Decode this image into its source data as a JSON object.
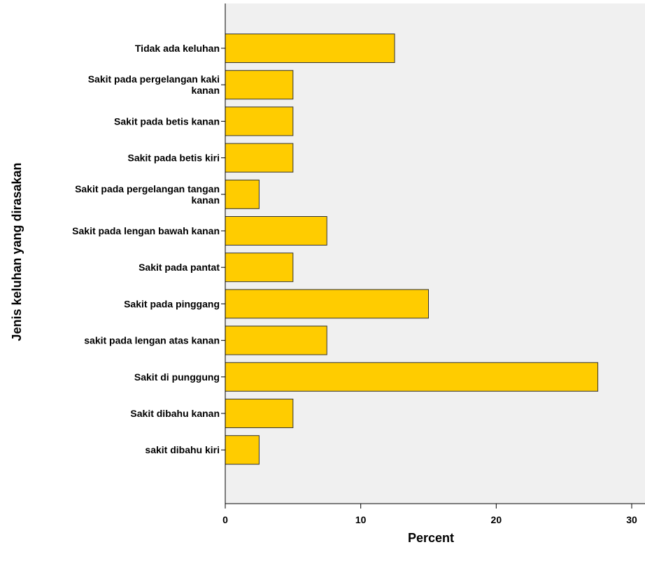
{
  "chart_data": {
    "type": "bar",
    "orientation": "horizontal",
    "categories": [
      [
        "Tidak ada keluhan"
      ],
      [
        "Sakit pada pergelangan kaki",
        "kanan"
      ],
      [
        "Sakit pada betis kanan"
      ],
      [
        "Sakit pada betis kiri"
      ],
      [
        "Sakit pada pergelangan tangan",
        "kanan"
      ],
      [
        "Sakit pada lengan bawah kanan"
      ],
      [
        "Sakit pada pantat"
      ],
      [
        "Sakit pada pinggang"
      ],
      [
        "sakit pada lengan atas kanan"
      ],
      [
        "Sakit di punggung"
      ],
      [
        "Sakit dibahu kanan"
      ],
      [
        "sakit dibahu kiri"
      ]
    ],
    "values": [
      12.5,
      5.0,
      5.0,
      5.0,
      2.5,
      7.5,
      5.0,
      15.0,
      7.5,
      27.5,
      5.0,
      2.5
    ],
    "title": "",
    "xlabel": "Percent",
    "ylabel": "Jenis keluhan yang dirasakan",
    "xlim": [
      0,
      30
    ],
    "xticks": [
      0,
      10,
      20,
      30
    ],
    "legend": "none",
    "grid": false,
    "colors": {
      "bar_fill": "#FFCC00",
      "bar_stroke": "#333333",
      "plot_background": "#F0F0F0",
      "page_background": "#FFFFFF"
    }
  }
}
